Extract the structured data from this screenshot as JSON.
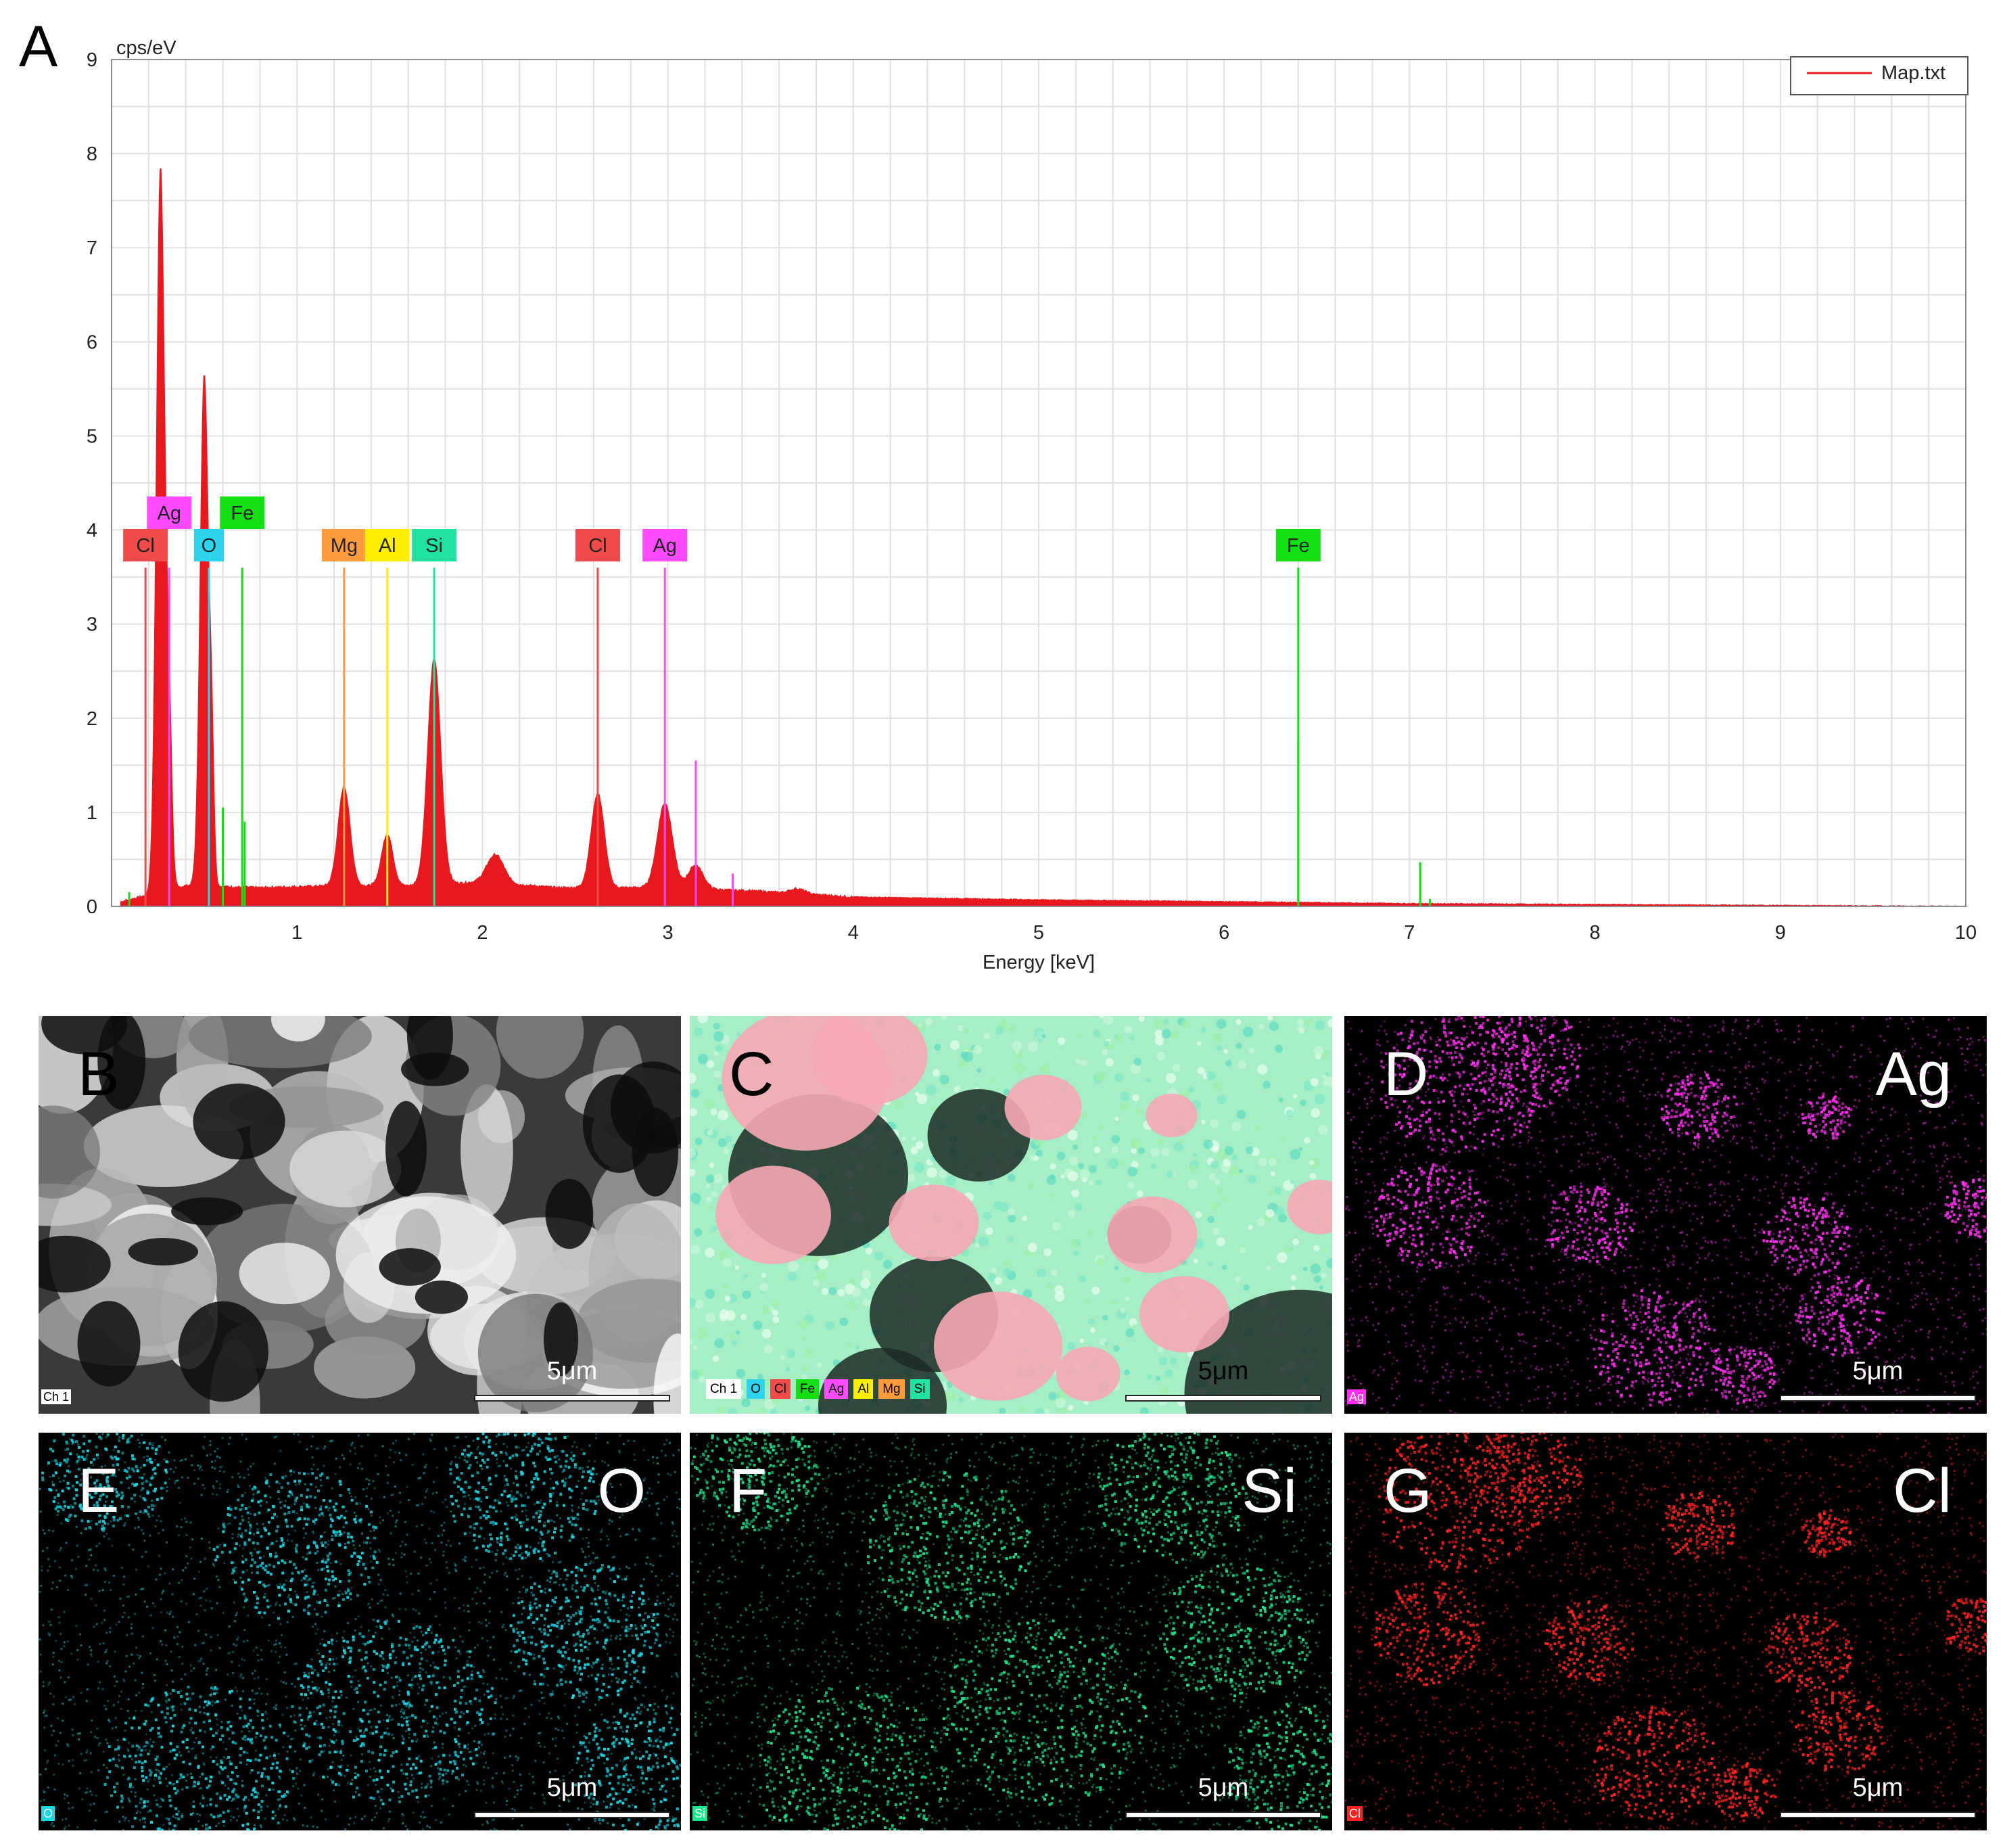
{
  "chart_data": {
    "type": "line",
    "panel_label": "A",
    "title": "",
    "xlabel": "Energy [keV]",
    "ylabel": "cps/eV",
    "xlim": [
      0,
      10
    ],
    "ylim": [
      0,
      9
    ],
    "x_ticks": [
      1,
      2,
      3,
      4,
      5,
      6,
      7,
      8,
      9,
      10
    ],
    "y_ticks": [
      0,
      1,
      2,
      3,
      4,
      5,
      6,
      7,
      8,
      9
    ],
    "grid": true,
    "legend": {
      "position": "top-right",
      "entries": [
        "Map.txt"
      ]
    },
    "series": [
      {
        "name": "Map.txt",
        "color": "#e8191e",
        "filled": true,
        "baseline": [
          [
            0.05,
            0.05
          ],
          [
            0.4,
            0.22
          ],
          [
            0.8,
            0.2
          ],
          [
            1.2,
            0.22
          ],
          [
            1.6,
            0.22
          ],
          [
            2.0,
            0.26
          ],
          [
            2.4,
            0.2
          ],
          [
            3.0,
            0.2
          ],
          [
            3.5,
            0.16
          ],
          [
            4.0,
            0.1
          ],
          [
            5.0,
            0.07
          ],
          [
            6.0,
            0.05
          ],
          [
            7.0,
            0.03
          ],
          [
            8.0,
            0.02
          ],
          [
            9.0,
            0.01
          ],
          [
            10.0,
            0.0
          ]
        ],
        "peaks": [
          {
            "energy": 0.264,
            "height": 7.7,
            "width": 0.022
          },
          {
            "energy": 0.31,
            "height": 1.7,
            "width": 0.015
          },
          {
            "energy": 0.5,
            "height": 5.45,
            "width": 0.022
          },
          {
            "energy": 0.54,
            "height": 1.2,
            "width": 0.012
          },
          {
            "energy": 1.254,
            "height": 1.05,
            "width": 0.032
          },
          {
            "energy": 1.487,
            "height": 0.55,
            "width": 0.03
          },
          {
            "energy": 1.74,
            "height": 2.4,
            "width": 0.035
          },
          {
            "energy": 2.07,
            "height": 0.3,
            "width": 0.045
          },
          {
            "energy": 2.622,
            "height": 1.0,
            "width": 0.035
          },
          {
            "energy": 2.984,
            "height": 0.9,
            "width": 0.04
          },
          {
            "energy": 3.15,
            "height": 0.25,
            "width": 0.04
          },
          {
            "energy": 3.7,
            "height": 0.05,
            "width": 0.04
          }
        ]
      }
    ],
    "element_markers": [
      {
        "element": "Cl",
        "energy": 0.183,
        "height": 3.6,
        "label_row": 2,
        "color": "#f04a4a"
      },
      {
        "element": "Ag",
        "energy": 0.311,
        "height": 3.6,
        "label_row": 1,
        "color": "#ff4aff"
      },
      {
        "element": "O",
        "energy": 0.525,
        "height": 3.6,
        "label_row": 2,
        "color": "#2ed4ee"
      },
      {
        "element": "Fe",
        "energy": 0.705,
        "height": 3.6,
        "label_row": 1,
        "color": "#12e012"
      },
      {
        "element": "Mg",
        "energy": 1.254,
        "height": 3.6,
        "label_row": 2,
        "color": "#ff9b3c"
      },
      {
        "element": "Al",
        "energy": 1.487,
        "height": 3.6,
        "label_row": 2,
        "color": "#ffee00"
      },
      {
        "element": "Si",
        "energy": 1.74,
        "height": 3.6,
        "label_row": 2,
        "color": "#22e2a2"
      },
      {
        "element": "Cl",
        "energy": 2.622,
        "height": 3.6,
        "label_row": 2,
        "color": "#f04a4a"
      },
      {
        "element": "Ag",
        "energy": 2.984,
        "height": 3.6,
        "label_row": 2,
        "color": "#ff4aff"
      },
      {
        "element": "Fe",
        "energy": 6.4,
        "height": 3.6,
        "label_row": 2,
        "color": "#12e012"
      }
    ],
    "minor_lines": [
      {
        "energy": 0.095,
        "height": 0.15,
        "color": "#12e012"
      },
      {
        "energy": 0.6,
        "height": 1.05,
        "color": "#12e012"
      },
      {
        "energy": 0.718,
        "height": 0.9,
        "color": "#12e012"
      },
      {
        "energy": 3.151,
        "height": 1.55,
        "color": "#ff4aff"
      },
      {
        "energy": 3.35,
        "height": 0.35,
        "color": "#ff4aff"
      },
      {
        "energy": 6.4,
        "height": 1.8,
        "color": "#12e012"
      },
      {
        "energy": 7.058,
        "height": 0.47,
        "color": "#12e012"
      },
      {
        "energy": 7.11,
        "height": 0.08,
        "color": "#12e012"
      }
    ]
  },
  "maps": [
    {
      "letter": "B",
      "element": "",
      "tag": "Ch 1",
      "scale": "5μm",
      "kind": "sem",
      "tint": "#ffffff",
      "letter_dark": true
    },
    {
      "letter": "C",
      "element": "",
      "tag": "Ch 1",
      "scale": "5μm",
      "kind": "overlay",
      "tint": "#ffffff",
      "letter_dark": true,
      "legend": [
        {
          "label": "Ch 1",
          "color": "#ffffff"
        },
        {
          "label": "O",
          "color": "#2ed4ee"
        },
        {
          "label": "Cl",
          "color": "#f04a4a"
        },
        {
          "label": "Fe",
          "color": "#12e012"
        },
        {
          "label": "Ag",
          "color": "#ff4aff"
        },
        {
          "label": "Al",
          "color": "#ffee00"
        },
        {
          "label": "Mg",
          "color": "#ff9b3c"
        },
        {
          "label": "Si",
          "color": "#22e2a2"
        }
      ]
    },
    {
      "letter": "D",
      "element": "Ag",
      "tag": "Ag",
      "scale": "5μm",
      "kind": "element",
      "tint": "#ff2ef0",
      "letter_dark": false
    },
    {
      "letter": "E",
      "element": "O",
      "tag": "O",
      "scale": "5μm",
      "kind": "element",
      "tint": "#1ad8e6",
      "letter_dark": false
    },
    {
      "letter": "F",
      "element": "Si",
      "tag": "Si",
      "scale": "5μm",
      "kind": "element",
      "tint": "#1ee68c",
      "letter_dark": false
    },
    {
      "letter": "G",
      "element": "Cl",
      "tag": "Cl",
      "scale": "5μm",
      "kind": "element",
      "tint": "#ff2222",
      "letter_dark": false
    }
  ]
}
